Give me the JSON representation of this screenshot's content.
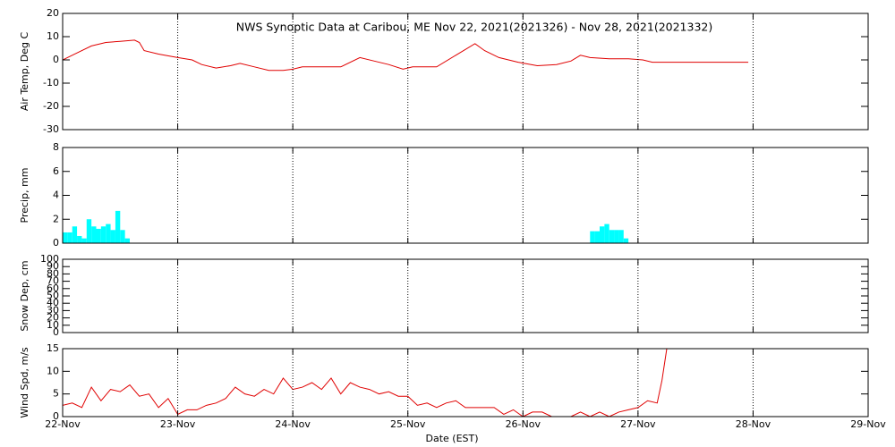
{
  "chart_data": [
    {
      "type": "line",
      "title": "NWS Synoptic Data at Caribou, ME    Nov 22, 2021(2021326) - Nov 28, 2021(2021332)",
      "ylabel": "Air Temp, Deg C",
      "xlim": [
        0,
        168
      ],
      "xticks": [
        0,
        24,
        48,
        72,
        96,
        120,
        144,
        168
      ],
      "grid": true,
      "ylim": [
        -30,
        20
      ],
      "yticks": [
        -30,
        -20,
        -10,
        0,
        10,
        20
      ],
      "color": "#e00000",
      "x": [
        0,
        3,
        6,
        9,
        12,
        15,
        16,
        17,
        20,
        24,
        27,
        29,
        32,
        35,
        37,
        40,
        43,
        46,
        48,
        50,
        54,
        58,
        62,
        65,
        68,
        71,
        73,
        75,
        78,
        82,
        86,
        88,
        91,
        95,
        99,
        103,
        106,
        108,
        110,
        114,
        118,
        121,
        123,
        130,
        137,
        143
      ],
      "values": [
        0,
        3,
        6,
        7.5,
        8,
        8.5,
        7.5,
        4,
        2.5,
        1,
        0,
        -2,
        -3.5,
        -2.5,
        -1.5,
        -3,
        -4.5,
        -4.5,
        -4,
        -3,
        -3,
        -3,
        1,
        -0.5,
        -2,
        -4,
        -3,
        -3,
        -3,
        2,
        7,
        4,
        1,
        -1,
        -2.5,
        -2,
        -0.5,
        2,
        1,
        0.5,
        0.5,
        0,
        -1,
        -1,
        -1,
        -1
      ]
    },
    {
      "type": "bar",
      "ylabel": "Precip, mm",
      "xlim": [
        0,
        168
      ],
      "xticks": [
        0,
        24,
        48,
        72,
        96,
        120,
        144,
        168
      ],
      "grid": true,
      "ylim": [
        0,
        8
      ],
      "yticks": [
        0,
        2,
        4,
        6,
        8
      ],
      "color": "#00ffff",
      "x": [
        0,
        1,
        2,
        3,
        4,
        5,
        6,
        7,
        8,
        9,
        10,
        11,
        12,
        13,
        110,
        111,
        112,
        113,
        114,
        115,
        116,
        117
      ],
      "values": [
        0.9,
        0.9,
        1.4,
        0.6,
        0.4,
        2.0,
        1.4,
        1.2,
        1.4,
        1.6,
        1.1,
        2.7,
        1.1,
        0.4,
        1.0,
        1.0,
        1.4,
        1.6,
        1.1,
        1.1,
        1.1,
        0.4
      ]
    },
    {
      "type": "line",
      "ylabel": "Snow Dep, cm",
      "xlim": [
        0,
        168
      ],
      "xticks": [
        0,
        24,
        48,
        72,
        96,
        120,
        144,
        168
      ],
      "grid": true,
      "ylim": [
        0,
        100
      ],
      "yticks": [
        0,
        10,
        20,
        30,
        40,
        50,
        60,
        70,
        80,
        90,
        100
      ]
    },
    {
      "type": "line",
      "ylabel": "Wind Spd, m/s",
      "xlabel": "Date (EST)",
      "xlim": [
        0,
        168
      ],
      "xticks": [
        {
          "value": 0,
          "label": "22-Nov"
        },
        {
          "value": 24,
          "label": "23-Nov"
        },
        {
          "value": 48,
          "label": "24-Nov"
        },
        {
          "value": 72,
          "label": "25-Nov"
        },
        {
          "value": 96,
          "label": "26-Nov"
        },
        {
          "value": 120,
          "label": "27-Nov"
        },
        {
          "value": 144,
          "label": "28-Nov"
        },
        {
          "value": 168,
          "label": "29-Nov"
        }
      ],
      "grid": true,
      "ylim": [
        0,
        15
      ],
      "yticks": [
        0,
        5,
        10,
        15
      ],
      "color": "#e00000",
      "x": [
        0,
        2,
        4,
        6,
        8,
        10,
        12,
        14,
        16,
        18,
        20,
        22,
        24,
        26,
        28,
        30,
        32,
        34,
        36,
        38,
        40,
        42,
        44,
        46,
        48,
        50,
        52,
        54,
        56,
        58,
        60,
        62,
        64,
        66,
        68,
        70,
        72,
        74,
        76,
        78,
        80,
        82,
        84,
        86,
        88,
        90,
        92,
        94,
        96,
        98,
        100,
        102,
        104,
        106,
        108,
        110,
        112,
        114,
        116,
        118,
        120,
        122,
        124,
        125,
        126
      ],
      "values": [
        2.5,
        3,
        2,
        6.5,
        3.5,
        6,
        5.5,
        7,
        4.5,
        5,
        2,
        4,
        0.5,
        1.5,
        1.5,
        2.5,
        3,
        4,
        6.5,
        5,
        4.5,
        6,
        5,
        8.5,
        6,
        6.5,
        7.5,
        6,
        8.5,
        5,
        7.5,
        6.5,
        6,
        5,
        5.5,
        4.5,
        4.5,
        2.5,
        3,
        2,
        3,
        3.5,
        2,
        2,
        2,
        2,
        0.5,
        1.5,
        0,
        1,
        1,
        0,
        0,
        0,
        1,
        0,
        1,
        0,
        1,
        1.5,
        2,
        3.5,
        3,
        8,
        15
      ]
    }
  ]
}
